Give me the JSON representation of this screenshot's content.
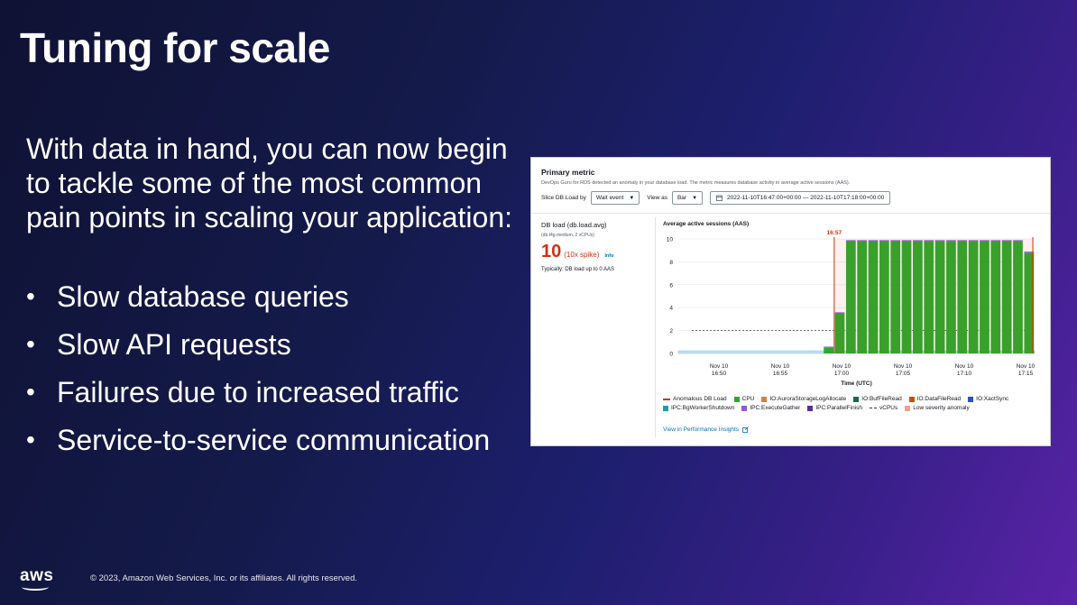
{
  "title": "Tuning for scale",
  "intro": "With data in hand, you can now begin to tackle some of the most common pain points in scaling your application:",
  "bullets": [
    "Slow database queries",
    "Slow API requests",
    "Failures due to increased traffic",
    "Service-to-service communication"
  ],
  "footer": {
    "logo": "aws",
    "copyright": "© 2023, Amazon Web Services, Inc. or its affiliates. All rights reserved."
  },
  "panel": {
    "title": "Primary metric",
    "description": "DevOps Guru for RDS detected an anomaly in your database load. The metric measures database activity in average active sessions (AAS).",
    "slice_label": "Slice DB Load by",
    "slice_value": "Wait event",
    "view_label": "View as",
    "view_value": "Bar",
    "date_range": "2022-11-10T16:47:00+00:00 — 2022-11-10T17:18:00+00:00",
    "dbload_label": "DB load (db.load.avg)",
    "dbload_sub": "(db.t4g.medium, 2 vCPUs)",
    "spike_value": "10",
    "spike_text": "(10x spike)",
    "info": "Info",
    "typically": "Typically: DB load up to 0 AAS",
    "chart_title": "Average active sessions (AAS)",
    "link": "View in Performance Insights",
    "colors": {
      "cpu": "#2ea82e",
      "anomaly": "#d13212",
      "panel_bg": "#ffffff"
    },
    "icons": [
      "calendar-icon",
      "external-link-icon",
      "caret-down-icon"
    ]
  },
  "chart_data": {
    "type": "bar",
    "title": "Average active sessions (AAS)",
    "xlabel": "Time (UTC)",
    "ylabel": "",
    "ylim": [
      0,
      10
    ],
    "yticks": [
      0,
      2,
      4,
      6,
      8,
      10
    ],
    "x_tick_labels": [
      [
        "Nov 10",
        "16:50"
      ],
      [
        "Nov 10",
        "16:55"
      ],
      [
        "Nov 10",
        "17:00"
      ],
      [
        "Nov 10",
        "17:05"
      ],
      [
        "Nov 10",
        "17:10"
      ],
      [
        "Nov 10",
        "17:15"
      ]
    ],
    "annotation": "16:57",
    "vcpus_line": 2,
    "series": [
      {
        "name": "CPU",
        "color": "#2ea82e",
        "values": [
          0,
          0,
          0,
          0,
          0,
          0,
          0,
          0,
          0,
          0,
          0,
          0,
          0,
          0.5,
          3.5,
          9.8,
          9.8,
          9.8,
          9.8,
          9.8,
          9.8,
          9.8,
          9.8,
          9.8,
          9.8,
          9.8,
          9.8,
          9.8,
          9.8,
          9.8,
          9.8,
          8.8
        ]
      }
    ],
    "legend": [
      {
        "name": "Anomalous DB Load",
        "color": "#d13212",
        "style": "line"
      },
      {
        "name": "CPU",
        "color": "#2ea82e",
        "style": "box"
      },
      {
        "name": "IO:AuroraStorageLogAllocate",
        "color": "#e07b39",
        "style": "box"
      },
      {
        "name": "IO:BufFileRead",
        "color": "#0b6e4f",
        "style": "box"
      },
      {
        "name": "IO:DataFileRead",
        "color": "#c45100",
        "style": "box"
      },
      {
        "name": "IO:XactSync",
        "color": "#2754c5",
        "style": "box"
      },
      {
        "name": "IPC:BgWorkerShutdown",
        "color": "#17a2a2",
        "style": "box"
      },
      {
        "name": "IPC:ExecuteGather",
        "color": "#8c5cd6",
        "style": "box"
      },
      {
        "name": "IPC:ParallelFinish",
        "color": "#5a2ca0",
        "style": "box"
      },
      {
        "name": "vCPUs",
        "color": "#333333",
        "style": "dash"
      },
      {
        "name": "Low severity anomaly",
        "color": "#f0a090",
        "style": "box"
      }
    ]
  }
}
